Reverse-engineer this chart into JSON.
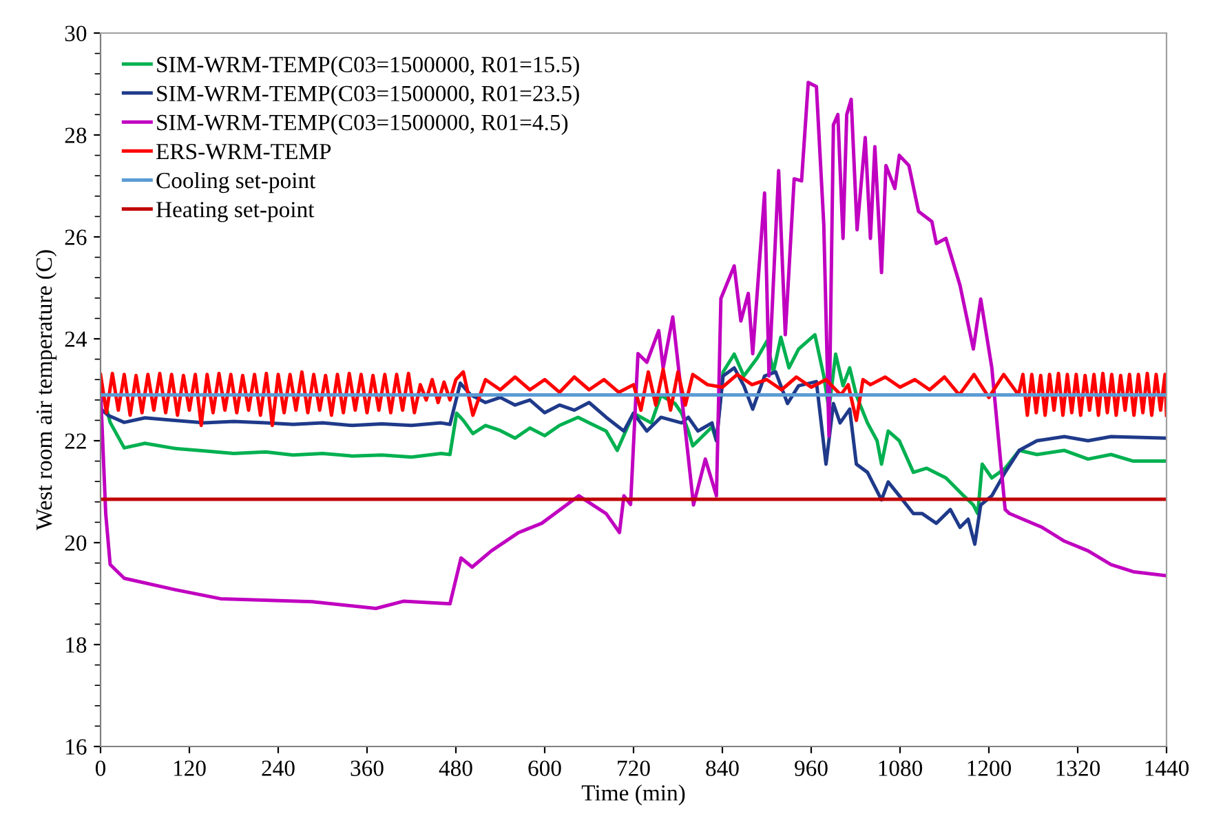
{
  "chart_data": {
    "type": "line",
    "xlabel": "Time (min)",
    "ylabel": "West room air temperature (C)",
    "xlim": [
      0,
      1440
    ],
    "ylim": [
      16,
      30
    ],
    "xticks": [
      0,
      120,
      240,
      360,
      480,
      600,
      720,
      840,
      960,
      1080,
      1200,
      1320,
      1440
    ],
    "yticks": [
      16,
      18,
      20,
      22,
      24,
      26,
      28,
      30
    ],
    "legend": "top left",
    "grid": false,
    "line_style": "solid",
    "marker": "none",
    "series": [
      {
        "name": "SIM-WRM-TEMP(C03=1500000, R01=15.5)",
        "color": "#00b050",
        "x": [
          0,
          7,
          13,
          32,
          60,
          100,
          140,
          180,
          223,
          260,
          300,
          340,
          380,
          420,
          460,
          472,
          481,
          490,
          503,
          520,
          540,
          560,
          580,
          600,
          620,
          645,
          660,
          683,
          698,
          720,
          744,
          757,
          776,
          785,
          794,
          800,
          826,
          832,
          841,
          856,
          869,
          887,
          900,
          909,
          919,
          930,
          943,
          965,
          977,
          984,
          993,
          1003,
          1012,
          1021,
          1036,
          1049,
          1055,
          1064,
          1079,
          1098,
          1116,
          1142,
          1166,
          1179,
          1185,
          1191,
          1204,
          1222,
          1241,
          1265,
          1302,
          1334,
          1365,
          1395,
          1440
        ],
        "values": [
          23.0,
          22.7,
          22.36,
          21.86,
          21.95,
          21.85,
          21.8,
          21.75,
          21.78,
          21.72,
          21.75,
          21.7,
          21.72,
          21.68,
          21.75,
          21.73,
          22.54,
          22.4,
          22.14,
          22.3,
          22.2,
          22.05,
          22.25,
          22.1,
          22.3,
          22.46,
          22.35,
          22.19,
          21.81,
          22.54,
          22.35,
          22.89,
          22.73,
          22.54,
          22.19,
          21.9,
          22.27,
          22.0,
          23.35,
          23.7,
          23.27,
          23.62,
          23.95,
          23.35,
          24.03,
          23.43,
          23.8,
          24.08,
          23.27,
          22.62,
          23.7,
          23.08,
          23.43,
          22.89,
          22.35,
          22.0,
          21.54,
          22.19,
          22.0,
          21.38,
          21.46,
          21.27,
          20.92,
          20.74,
          20.57,
          21.54,
          21.27,
          21.46,
          21.81,
          21.73,
          21.81,
          21.64,
          21.73,
          21.6,
          21.6
        ]
      },
      {
        "name": "SIM-WRM-TEMP(C03=1500000, R01=23.5)",
        "color": "#1f3a8a",
        "x": [
          0,
          10,
          32,
          60,
          100,
          140,
          180,
          223,
          260,
          300,
          340,
          380,
          420,
          460,
          472,
          486,
          500,
          520,
          540,
          560,
          580,
          600,
          620,
          640,
          660,
          683,
          707,
          720,
          738,
          757,
          785,
          794,
          807,
          826,
          832,
          841,
          856,
          869,
          881,
          897,
          912,
          928,
          943,
          967,
          980,
          990,
          999,
          1012,
          1021,
          1036,
          1055,
          1064,
          1079,
          1098,
          1110,
          1129,
          1148,
          1161,
          1172,
          1181,
          1189,
          1204,
          1222,
          1241,
          1265,
          1302,
          1334,
          1365,
          1440
        ],
        "values": [
          22.63,
          22.5,
          22.36,
          22.45,
          22.4,
          22.35,
          22.38,
          22.35,
          22.32,
          22.35,
          22.3,
          22.33,
          22.3,
          22.35,
          22.32,
          23.13,
          22.9,
          22.75,
          22.85,
          22.7,
          22.8,
          22.55,
          22.7,
          22.6,
          22.75,
          22.46,
          22.19,
          22.54,
          22.19,
          22.46,
          22.35,
          22.46,
          22.19,
          22.35,
          22.0,
          23.27,
          23.43,
          23.08,
          22.62,
          23.27,
          23.35,
          22.73,
          23.08,
          23.16,
          21.54,
          22.73,
          22.35,
          22.62,
          21.54,
          21.38,
          20.84,
          21.19,
          20.92,
          20.57,
          20.57,
          20.38,
          20.65,
          20.3,
          20.46,
          19.97,
          20.74,
          20.92,
          21.38,
          21.81,
          22.0,
          22.08,
          22.0,
          22.08,
          22.05
        ]
      },
      {
        "name": "SIM-WRM-TEMP(C03=1500000, R01=4.5)",
        "color": "#c000c0",
        "x": [
          0,
          7,
          13,
          32,
          100,
          162,
          286,
          372,
          409,
          472,
          487,
          502,
          528,
          565,
          596,
          646,
          683,
          701,
          707,
          716,
          726,
          738,
          754,
          760,
          773,
          782,
          801,
          817,
          832,
          838,
          856,
          865,
          875,
          881,
          897,
          903,
          916,
          925,
          937,
          947,
          956,
          967,
          977,
          984,
          990,
          996,
          1003,
          1008,
          1014,
          1022,
          1033,
          1040,
          1046,
          1055,
          1061,
          1073,
          1079,
          1092,
          1105,
          1123,
          1129,
          1142,
          1161,
          1179,
          1189,
          1204,
          1222,
          1228,
          1272,
          1302,
          1334,
          1365,
          1395,
          1440
        ],
        "values": [
          23.0,
          20.57,
          19.57,
          19.3,
          19.08,
          18.9,
          18.84,
          18.71,
          18.85,
          18.8,
          19.7,
          19.52,
          19.84,
          20.2,
          20.38,
          20.92,
          20.57,
          20.2,
          20.92,
          20.75,
          23.71,
          23.54,
          24.16,
          23.43,
          24.43,
          23.27,
          20.74,
          21.64,
          20.92,
          24.79,
          25.43,
          24.35,
          24.89,
          23.71,
          26.86,
          23.27,
          27.3,
          24.08,
          27.14,
          27.1,
          29.03,
          28.95,
          26.24,
          22.09,
          28.2,
          28.4,
          25.97,
          28.4,
          28.7,
          26.14,
          27.95,
          25.97,
          27.77,
          25.3,
          27.4,
          26.95,
          27.6,
          27.4,
          26.5,
          26.3,
          25.87,
          25.97,
          25.05,
          23.8,
          24.78,
          23.43,
          20.65,
          20.57,
          20.3,
          20.03,
          19.84,
          19.57,
          19.43,
          19.35
        ]
      },
      {
        "name": "ERS-WRM-TEMP",
        "color": "#ff0000",
        "x": [
          0,
          8,
          16,
          24,
          32,
          40,
          48,
          56,
          64,
          72,
          80,
          88,
          96,
          104,
          112,
          120,
          128,
          136,
          144,
          152,
          160,
          168,
          176,
          184,
          192,
          200,
          208,
          216,
          224,
          232,
          240,
          248,
          256,
          264,
          272,
          280,
          288,
          296,
          304,
          312,
          320,
          328,
          336,
          344,
          352,
          360,
          368,
          376,
          384,
          392,
          400,
          408,
          416,
          424,
          432,
          440,
          448,
          456,
          464,
          472,
          480,
          490,
          503,
          520,
          540,
          560,
          580,
          600,
          620,
          640,
          660,
          680,
          700,
          720,
          730,
          740,
          750,
          760,
          770,
          780,
          790,
          800,
          820,
          840,
          860,
          880,
          900,
          920,
          940,
          960,
          980,
          1000,
          1010,
          1021,
          1030,
          1040,
          1060,
          1080,
          1100,
          1120,
          1140,
          1160,
          1180,
          1200,
          1220,
          1240,
          1246,
          1252,
          1258,
          1264,
          1270,
          1276,
          1282,
          1288,
          1294,
          1300,
          1306,
          1312,
          1318,
          1324,
          1330,
          1336,
          1342,
          1348,
          1354,
          1360,
          1366,
          1372,
          1378,
          1384,
          1390,
          1396,
          1402,
          1408,
          1414,
          1420,
          1426,
          1432,
          1438,
          1440
        ],
        "values": [
          23.3,
          22.55,
          23.32,
          22.6,
          23.3,
          22.5,
          23.28,
          22.55,
          23.3,
          22.6,
          23.32,
          22.55,
          23.3,
          22.5,
          23.28,
          22.6,
          23.3,
          22.3,
          23.3,
          22.55,
          23.32,
          22.6,
          23.3,
          22.55,
          23.28,
          22.6,
          23.3,
          22.5,
          23.32,
          22.3,
          23.3,
          22.55,
          23.3,
          22.6,
          23.35,
          22.55,
          23.3,
          22.6,
          23.28,
          22.5,
          23.3,
          22.55,
          23.32,
          22.6,
          23.3,
          22.55,
          23.28,
          22.6,
          23.3,
          22.55,
          23.3,
          22.6,
          23.32,
          22.55,
          23.1,
          22.8,
          23.2,
          22.75,
          23.15,
          22.8,
          23.2,
          23.35,
          22.5,
          23.2,
          23.0,
          23.25,
          23.0,
          23.2,
          22.95,
          23.25,
          23.0,
          23.2,
          22.95,
          23.1,
          22.6,
          23.35,
          22.7,
          23.4,
          22.6,
          23.35,
          22.7,
          23.3,
          23.1,
          23.05,
          23.3,
          23.1,
          23.2,
          23.0,
          23.25,
          23.05,
          23.2,
          22.9,
          23.1,
          22.4,
          23.2,
          23.1,
          23.25,
          23.05,
          23.2,
          23.0,
          23.25,
          22.9,
          23.3,
          22.85,
          23.3,
          22.9,
          23.3,
          22.5,
          23.3,
          22.55,
          23.28,
          22.5,
          23.3,
          22.6,
          23.32,
          22.5,
          23.3,
          22.55,
          23.3,
          22.5,
          23.28,
          22.6,
          23.3,
          22.5,
          23.32,
          22.55,
          23.3,
          22.5,
          23.28,
          22.6,
          23.3,
          22.5,
          23.3,
          22.55,
          23.32,
          22.5,
          23.3,
          22.6,
          23.3,
          22.5
        ]
      },
      {
        "name": "Cooling set-point",
        "color": "#5b9bd5",
        "x": [
          0,
          1440
        ],
        "values": [
          22.9,
          22.9
        ]
      },
      {
        "name": "Heating set-point",
        "color": "#c00000",
        "x": [
          0,
          1440
        ],
        "values": [
          20.85,
          20.85
        ]
      }
    ]
  }
}
